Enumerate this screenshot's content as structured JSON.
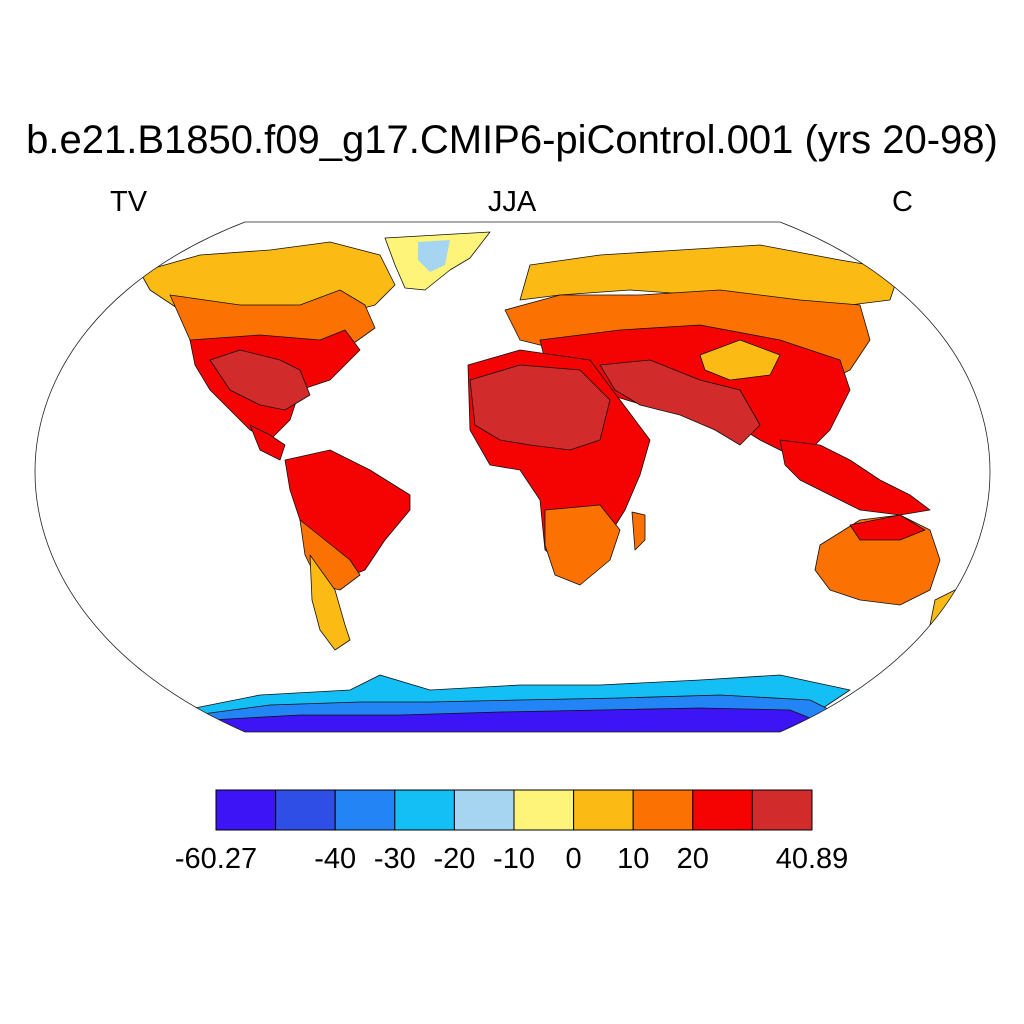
{
  "title": "b.e21.B1850.f09_g17.CMIP6-piControl.001 (yrs 20-98)",
  "left_label": "TV",
  "center_label": "JJA",
  "right_label": "C",
  "colorbar": {
    "colors": [
      "#3d14f5",
      "#2f4ee6",
      "#2385f5",
      "#13bff5",
      "#a5d5f0",
      "#fff47a",
      "#fbbb14",
      "#fb7203",
      "#f50303",
      "#d12b2b"
    ],
    "tick_labels": [
      {
        "text": "-60.27",
        "boundary": 0
      },
      {
        "text": "-40",
        "boundary": 2
      },
      {
        "text": "-30",
        "boundary": 3
      },
      {
        "text": "-20",
        "boundary": 4
      },
      {
        "text": "-10",
        "boundary": 5
      },
      {
        "text": "0",
        "boundary": 6
      },
      {
        "text": "10",
        "boundary": 7
      },
      {
        "text": "20",
        "boundary": 8
      },
      {
        "text": "40.89",
        "boundary": 10
      }
    ]
  },
  "map_regions": [
    {
      "name": "greenland",
      "fill": "#fff47a"
    },
    {
      "name": "greenland-interior",
      "fill": "#a5d5f0"
    },
    {
      "name": "north-america-arctic",
      "fill": "#fbbb14"
    },
    {
      "name": "north-america-mid",
      "fill": "#fb7203"
    },
    {
      "name": "north-america-south",
      "fill": "#f50303"
    },
    {
      "name": "north-america-hot",
      "fill": "#d12b2b"
    },
    {
      "name": "south-america",
      "fill": "#f50303"
    },
    {
      "name": "south-america-south",
      "fill": "#fb7203"
    },
    {
      "name": "patagonia",
      "fill": "#fbbb14"
    },
    {
      "name": "eurasia-north",
      "fill": "#fbbb14"
    },
    {
      "name": "eurasia-mid",
      "fill": "#fb7203"
    },
    {
      "name": "eurasia-south",
      "fill": "#f50303"
    },
    {
      "name": "tibet",
      "fill": "#fbbb14"
    },
    {
      "name": "middle-east-hot",
      "fill": "#d12b2b"
    },
    {
      "name": "africa",
      "fill": "#f50303"
    },
    {
      "name": "sahara-hot",
      "fill": "#d12b2b"
    },
    {
      "name": "africa-south",
      "fill": "#fb7203"
    },
    {
      "name": "southeast-asia",
      "fill": "#f50303"
    },
    {
      "name": "australia",
      "fill": "#fb7203"
    },
    {
      "name": "australia-north",
      "fill": "#f50303"
    },
    {
      "name": "new-zealand",
      "fill": "#fbbb14"
    },
    {
      "name": "antarctica-edge",
      "fill": "#13bff5"
    },
    {
      "name": "antarctica-coast",
      "fill": "#2385f5"
    },
    {
      "name": "antarctica-interior",
      "fill": "#3d14f5"
    }
  ]
}
